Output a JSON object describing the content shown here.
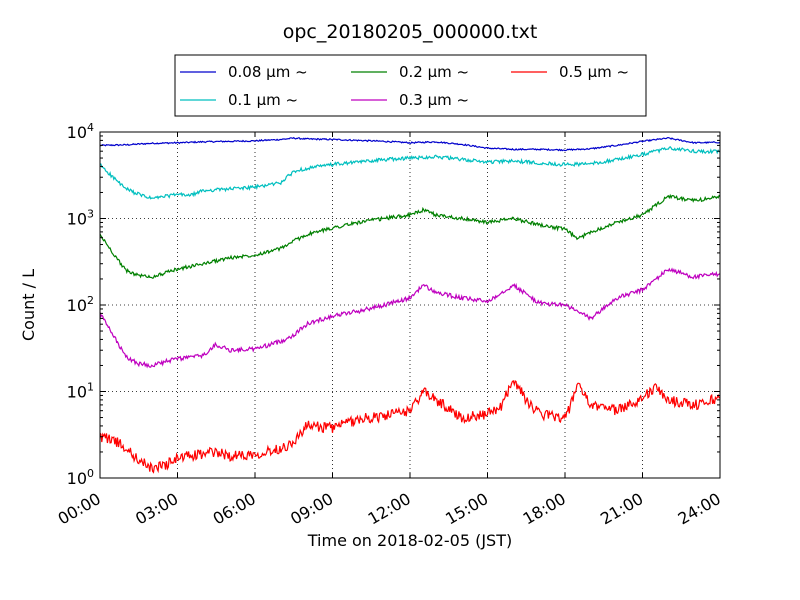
{
  "chart_data": {
    "type": "line",
    "title": "opc_20180205_000000.txt",
    "xlabel": "Time on 2018-02-05 (JST)",
    "ylabel": "Count / L",
    "x_ticks": [
      "00:00",
      "03:00",
      "06:00",
      "09:00",
      "12:00",
      "15:00",
      "18:00",
      "21:00",
      "24:00"
    ],
    "xlim": [
      0,
      24
    ],
    "ylim": [
      1,
      10000
    ],
    "yscale": "log",
    "y_ticks": [
      {
        "base": "10",
        "exp": "0"
      },
      {
        "base": "10",
        "exp": "1"
      },
      {
        "base": "10",
        "exp": "2"
      },
      {
        "base": "10",
        "exp": "3"
      },
      {
        "base": "10",
        "exp": "4"
      }
    ],
    "grid": true,
    "legend_position": "top-center",
    "series": [
      {
        "name": "0.08 μm ~",
        "color": "#0000cc",
        "x": [
          0,
          1,
          2,
          3,
          4,
          5,
          6,
          7,
          7.5,
          8,
          9,
          10,
          11,
          12,
          13,
          14,
          15,
          16,
          17,
          18,
          19,
          20,
          21,
          22,
          23,
          24
        ],
        "y": [
          7000,
          7100,
          7400,
          7500,
          7700,
          7800,
          7900,
          8200,
          8500,
          8300,
          8200,
          8000,
          7800,
          7500,
          7700,
          7200,
          6500,
          6300,
          6300,
          6200,
          6400,
          7000,
          7800,
          8500,
          7500,
          7600
        ]
      },
      {
        "name": "0.1 μm ~",
        "color": "#00bfbf",
        "x": [
          0,
          0.5,
          1,
          1.5,
          2,
          2.5,
          3,
          3.5,
          4,
          5,
          6,
          7,
          7.5,
          8,
          8.5,
          9,
          10,
          11,
          12,
          13,
          14,
          15,
          16,
          17,
          18,
          19,
          20,
          21,
          22,
          23,
          24
        ],
        "y": [
          4200,
          3000,
          2200,
          1900,
          1700,
          1800,
          1900,
          1850,
          2100,
          2200,
          2300,
          2600,
          3500,
          3800,
          4000,
          4200,
          4500,
          4800,
          5000,
          5200,
          4800,
          4500,
          4600,
          4400,
          4200,
          4300,
          4800,
          5500,
          6500,
          6000,
          5900
        ]
      },
      {
        "name": "0.2 μm ~",
        "color": "#008000",
        "x": [
          0,
          0.5,
          1,
          1.5,
          2,
          3,
          4,
          5,
          6,
          7,
          7.5,
          8,
          9,
          10,
          11,
          12,
          12.5,
          13,
          14,
          15,
          16,
          17,
          18,
          18.5,
          19,
          20,
          21,
          22,
          23,
          24
        ],
        "y": [
          650,
          400,
          250,
          220,
          210,
          260,
          300,
          350,
          380,
          450,
          550,
          650,
          780,
          900,
          1000,
          1100,
          1250,
          1100,
          1000,
          900,
          1000,
          850,
          750,
          580,
          700,
          900,
          1100,
          1800,
          1600,
          1800
        ]
      },
      {
        "name": "0.3 μm ~",
        "color": "#bf00bf",
        "x": [
          0,
          0.5,
          1,
          1.5,
          2,
          3,
          4,
          4.5,
          5,
          6,
          7,
          7.5,
          8,
          9,
          10,
          11,
          12,
          12.5,
          13,
          14,
          15,
          16,
          17,
          18,
          19,
          20,
          21,
          22,
          23,
          24
        ],
        "y": [
          80,
          45,
          25,
          21,
          20,
          24,
          26,
          35,
          30,
          31,
          38,
          45,
          60,
          75,
          85,
          100,
          120,
          170,
          140,
          120,
          110,
          170,
          105,
          100,
          70,
          120,
          150,
          260,
          210,
          230
        ]
      },
      {
        "name": "0.5 μm ~",
        "color": "#ff0000",
        "x": [
          0,
          0.5,
          1,
          1.5,
          2,
          2.5,
          3,
          3.5,
          4,
          4.5,
          5,
          6,
          7,
          7.5,
          8,
          9,
          10,
          11,
          12,
          12.5,
          13,
          14,
          15,
          15.5,
          16,
          16.5,
          17,
          18,
          18.2,
          18.5,
          19,
          19.5,
          20,
          21,
          21.5,
          22,
          23,
          24
        ],
        "y": [
          3.0,
          2.8,
          2.2,
          1.6,
          1.3,
          1.4,
          1.7,
          1.8,
          1.9,
          2.0,
          1.8,
          1.9,
          2.2,
          2.6,
          4.0,
          3.8,
          4.8,
          5.2,
          6.0,
          10.0,
          8.0,
          5.0,
          5.5,
          6.5,
          14.0,
          8.0,
          5.5,
          5.0,
          6.5,
          13.0,
          6.5,
          7.0,
          6.0,
          8.5,
          11.0,
          8.0,
          7.0,
          8.5
        ]
      }
    ]
  }
}
